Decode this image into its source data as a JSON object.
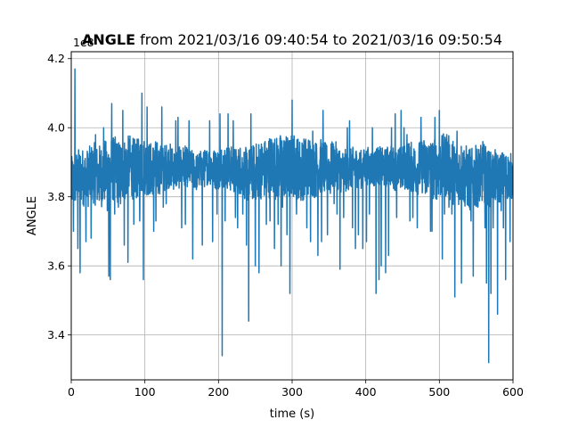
{
  "chart_data": {
    "type": "line",
    "title": {
      "bold": "ANGLE",
      "rest": " from 2021/03/16 09:40:54 to 2021/03/16 09:50:54"
    },
    "xlabel": "time (s)",
    "ylabel": "ANGLE",
    "y_offset_text": "1e8",
    "xlim": [
      0,
      600
    ],
    "ylim": [
      3.27,
      4.22
    ],
    "xticks": [
      0,
      100,
      200,
      300,
      400,
      500,
      600
    ],
    "yticks": [
      3.4,
      3.6,
      3.8,
      4.0,
      4.2
    ],
    "ytick_labels": [
      "3.4",
      "3.6",
      "3.8",
      "4.0",
      "4.2"
    ],
    "grid": true,
    "line_color": "#1f77b4",
    "series": [
      {
        "x_start": 0,
        "x_step": 5,
        "trend": [
          3.84,
          3.85,
          3.86,
          3.86,
          3.85,
          3.86,
          3.87,
          3.86,
          3.86,
          3.87,
          3.87,
          3.88,
          3.88,
          3.87,
          3.88,
          3.88,
          3.89,
          3.88,
          3.88,
          3.89,
          3.89,
          3.88,
          3.88,
          3.89,
          3.88,
          3.88,
          3.89,
          3.89,
          3.88,
          3.88,
          3.89,
          3.89,
          3.88,
          3.88,
          3.87,
          3.88,
          3.88,
          3.89,
          3.89,
          3.88,
          3.88,
          3.89,
          3.89,
          3.88,
          3.88,
          3.87,
          3.88,
          3.87,
          3.86,
          3.87,
          3.87,
          3.88,
          3.88,
          3.88,
          3.89,
          3.89,
          3.88,
          3.89,
          3.89,
          3.88,
          3.89,
          3.89,
          3.88,
          3.88,
          3.89,
          3.89,
          3.88,
          3.88,
          3.89,
          3.88,
          3.88,
          3.89,
          3.89,
          3.88,
          3.87,
          3.88,
          3.88,
          3.89,
          3.88,
          3.88,
          3.89,
          3.89,
          3.88,
          3.89,
          3.89,
          3.88,
          3.89,
          3.89,
          3.88,
          3.88,
          3.88,
          3.89,
          3.89,
          3.88,
          3.88,
          3.89,
          3.89,
          3.89,
          3.88,
          3.88,
          3.88,
          3.89,
          3.89,
          3.88,
          3.87,
          3.87,
          3.87,
          3.86,
          3.85,
          3.85,
          3.86,
          3.86,
          3.87,
          3.86,
          3.85,
          3.86,
          3.85,
          3.86,
          3.86,
          3.86,
          3.86
        ],
        "spikes": [
          [
            3,
            3.7
          ],
          [
            4,
            3.79
          ],
          [
            5,
            4.17
          ],
          [
            9,
            3.65
          ],
          [
            12,
            3.58
          ],
          [
            20,
            3.67
          ],
          [
            27,
            3.68
          ],
          [
            33,
            3.98
          ],
          [
            44,
            4.0
          ],
          [
            49,
            3.76
          ],
          [
            51,
            3.57
          ],
          [
            53,
            3.56
          ],
          [
            55,
            4.07
          ],
          [
            59,
            3.75
          ],
          [
            64,
            3.77
          ],
          [
            67,
            3.78
          ],
          [
            70,
            4.05
          ],
          [
            72,
            3.66
          ],
          [
            77,
            3.61
          ],
          [
            85,
            3.72
          ],
          [
            93,
            3.73
          ],
          [
            96,
            4.1
          ],
          [
            98,
            3.56
          ],
          [
            103,
            4.06
          ],
          [
            107,
            3.81
          ],
          [
            112,
            3.7
          ],
          [
            115,
            3.73
          ],
          [
            118,
            3.81
          ],
          [
            123,
            4.06
          ],
          [
            125,
            3.77
          ],
          [
            129,
            3.78
          ],
          [
            142,
            4.02
          ],
          [
            145,
            4.03
          ],
          [
            150,
            3.71
          ],
          [
            155,
            3.72
          ],
          [
            160,
            4.02
          ],
          [
            165,
            3.62
          ],
          [
            171,
            3.85
          ],
          [
            178,
            3.66
          ],
          [
            188,
            4.02
          ],
          [
            192,
            3.67
          ],
          [
            198,
            3.75
          ],
          [
            202,
            4.04
          ],
          [
            205,
            3.34
          ],
          [
            209,
            3.73
          ],
          [
            213,
            4.04
          ],
          [
            220,
            4.02
          ],
          [
            223,
            3.74
          ],
          [
            226,
            3.71
          ],
          [
            233,
            3.75
          ],
          [
            238,
            3.66
          ],
          [
            241,
            3.44
          ],
          [
            244,
            4.04
          ],
          [
            250,
            3.6
          ],
          [
            255,
            3.58
          ],
          [
            260,
            3.9
          ],
          [
            265,
            3.72
          ],
          [
            270,
            3.73
          ],
          [
            276,
            3.65
          ],
          [
            281,
            3.72
          ],
          [
            285,
            3.6
          ],
          [
            287,
            3.77
          ],
          [
            293,
            3.69
          ],
          [
            297,
            3.52
          ],
          [
            300,
            4.08
          ],
          [
            306,
            3.75
          ],
          [
            312,
            3.79
          ],
          [
            320,
            3.71
          ],
          [
            325,
            3.67
          ],
          [
            328,
            3.99
          ],
          [
            335,
            3.63
          ],
          [
            340,
            3.67
          ],
          [
            342,
            4.05
          ],
          [
            348,
            3.69
          ],
          [
            352,
            3.81
          ],
          [
            357,
            3.78
          ],
          [
            361,
            3.75
          ],
          [
            365,
            3.59
          ],
          [
            370,
            3.74
          ],
          [
            375,
            4.0
          ],
          [
            378,
            4.02
          ],
          [
            382,
            3.71
          ],
          [
            386,
            3.65
          ],
          [
            390,
            3.69
          ],
          [
            396,
            3.65
          ],
          [
            401,
            3.67
          ],
          [
            405,
            3.75
          ],
          [
            409,
            4.0
          ],
          [
            414,
            3.52
          ],
          [
            418,
            3.56
          ],
          [
            421,
            3.6
          ],
          [
            427,
            3.58
          ],
          [
            431,
            3.63
          ],
          [
            435,
            4.0
          ],
          [
            440,
            4.04
          ],
          [
            442,
            3.74
          ],
          [
            448,
            4.05
          ],
          [
            452,
            4.0
          ],
          [
            456,
            3.98
          ],
          [
            460,
            3.73
          ],
          [
            464,
            3.74
          ],
          [
            470,
            3.71
          ],
          [
            475,
            4.03
          ],
          [
            481,
            3.81
          ],
          [
            488,
            3.7
          ],
          [
            490,
            3.7
          ],
          [
            494,
            4.03
          ],
          [
            500,
            4.05
          ],
          [
            504,
            3.62
          ],
          [
            507,
            3.75
          ],
          [
            510,
            3.98
          ],
          [
            513,
            3.77
          ],
          [
            517,
            3.75
          ],
          [
            521,
            3.51
          ],
          [
            524,
            3.99
          ],
          [
            530,
            3.55
          ],
          [
            537,
            3.88
          ],
          [
            543,
            3.73
          ],
          [
            546,
            3.57
          ],
          [
            552,
            3.77
          ],
          [
            559,
            3.96
          ],
          [
            562,
            3.71
          ],
          [
            564,
            3.55
          ],
          [
            567,
            3.32
          ],
          [
            570,
            3.52
          ],
          [
            573,
            3.71
          ],
          [
            579,
            3.46
          ],
          [
            584,
            3.76
          ],
          [
            587,
            3.71
          ],
          [
            590,
            3.56
          ],
          [
            593,
            3.91
          ],
          [
            596,
            3.67
          ]
        ]
      }
    ]
  }
}
